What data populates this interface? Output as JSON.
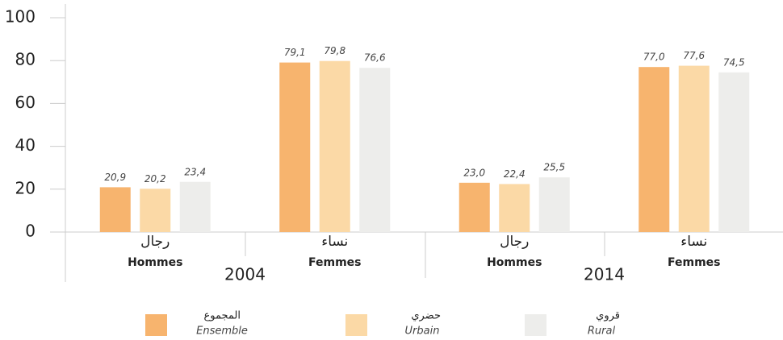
{
  "chart_data": {
    "type": "bar",
    "categories": [
      "Hommes",
      "Femmes",
      "Hommes",
      "Femmes"
    ],
    "categories_ar": [
      "رجال",
      "نساء",
      "رجال",
      "نساء"
    ],
    "groups": [
      "2004",
      "2014"
    ],
    "series": [
      {
        "name": "Ensemble",
        "name_ar": "المجموع",
        "color": "#f7b46e",
        "values": [
          20.9,
          79.1,
          23.0,
          77.0
        ],
        "value_labels": [
          "20,9",
          "79,1",
          "23,0",
          "77,0"
        ]
      },
      {
        "name": "Urbain",
        "name_ar": "حضري",
        "color": "#fbd9a6",
        "values": [
          20.2,
          79.8,
          22.4,
          77.6
        ],
        "value_labels": [
          "20,2",
          "79,8",
          "22,4",
          "77,6"
        ]
      },
      {
        "name": "Rural",
        "name_ar": "قروي",
        "color": "#ededeb",
        "values": [
          23.4,
          76.6,
          25.5,
          74.5
        ],
        "value_labels": [
          "23,4",
          "76,6",
          "25,5",
          "74,5"
        ]
      }
    ],
    "ylim": [
      0,
      100
    ],
    "yticks": [
      0,
      20,
      40,
      60,
      80,
      100
    ],
    "grid": false
  }
}
